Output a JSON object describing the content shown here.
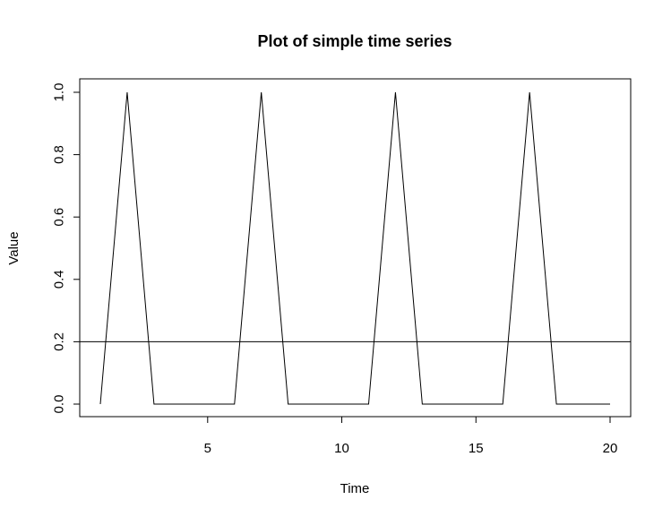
{
  "chart_data": {
    "type": "line",
    "title": "Plot of simple time series",
    "xlabel": "Time",
    "ylabel": "Value",
    "xlim": [
      1,
      20
    ],
    "ylim": [
      0,
      1
    ],
    "x_ticks": [
      5,
      10,
      15,
      20
    ],
    "x_tick_labels": [
      "5",
      "10",
      "15",
      "20"
    ],
    "y_ticks": [
      0,
      0.2,
      0.4,
      0.6,
      0.8,
      1.0
    ],
    "y_tick_labels": [
      "0.0",
      "0.2",
      "0.4",
      "0.6",
      "0.8",
      "1.0"
    ],
    "grid": false,
    "series": [
      {
        "x": [
          1,
          2,
          3,
          4,
          5,
          6,
          7,
          8,
          9,
          10,
          11,
          12,
          13,
          14,
          15,
          16,
          17,
          18,
          19,
          20
        ],
        "values": [
          0,
          1,
          0,
          0,
          0,
          0,
          1,
          0,
          0,
          0,
          0,
          1,
          0,
          0,
          0,
          0,
          1,
          0,
          0,
          0
        ],
        "color": "#000000"
      }
    ],
    "hlines": [
      {
        "y": 0.2,
        "color": "#000000"
      }
    ]
  }
}
